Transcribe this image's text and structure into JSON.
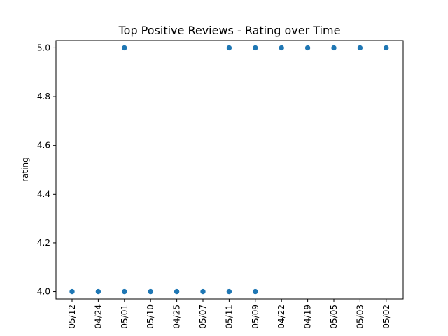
{
  "chart_data": {
    "type": "scatter",
    "title": "Top Positive Reviews - Rating over Time",
    "xlabel": "",
    "ylabel": "rating",
    "categories": [
      "05/12",
      "04/24",
      "05/01",
      "05/10",
      "04/25",
      "05/07",
      "05/11",
      "05/09",
      "04/22",
      "04/19",
      "05/05",
      "05/03",
      "05/02"
    ],
    "points": [
      {
        "x": "05/12",
        "y": 4.0
      },
      {
        "x": "04/24",
        "y": 4.0
      },
      {
        "x": "05/01",
        "y": 4.0
      },
      {
        "x": "05/01",
        "y": 5.0
      },
      {
        "x": "05/10",
        "y": 4.0
      },
      {
        "x": "04/25",
        "y": 4.0
      },
      {
        "x": "05/07",
        "y": 4.0
      },
      {
        "x": "05/11",
        "y": 4.0
      },
      {
        "x": "05/11",
        "y": 5.0
      },
      {
        "x": "05/09",
        "y": 4.0
      },
      {
        "x": "05/09",
        "y": 5.0
      },
      {
        "x": "04/22",
        "y": 5.0
      },
      {
        "x": "04/19",
        "y": 5.0
      },
      {
        "x": "05/05",
        "y": 5.0
      },
      {
        "x": "05/03",
        "y": 5.0
      },
      {
        "x": "05/02",
        "y": 5.0
      }
    ],
    "y_ticks": [
      "4.0",
      "4.2",
      "4.4",
      "4.6",
      "4.8",
      "5.0"
    ],
    "ylim": [
      3.97,
      5.03
    ],
    "grid": false,
    "point_color": "#1f77b4"
  }
}
